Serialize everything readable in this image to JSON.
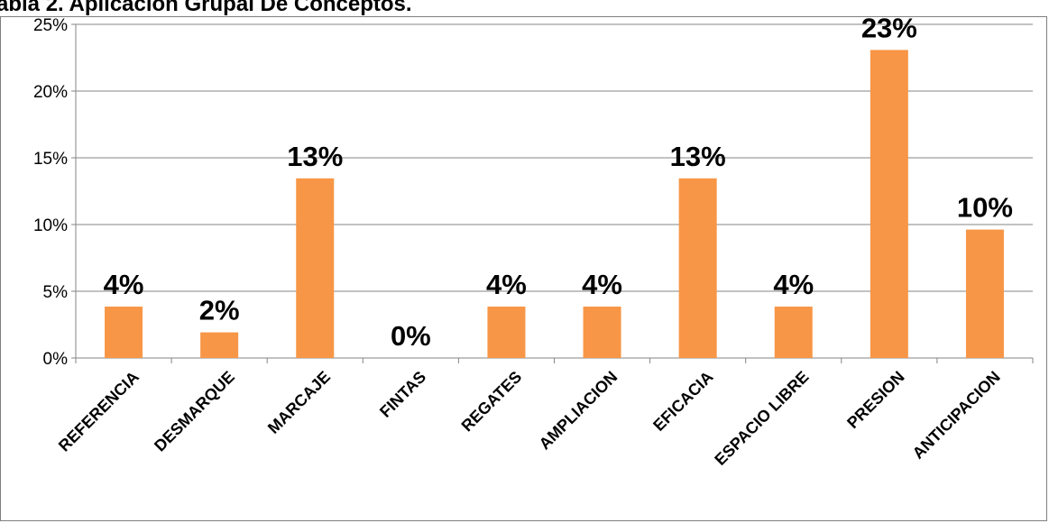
{
  "chart_data": {
    "type": "bar",
    "title": "abla 2. Aplicación Grupal De Conceptos.",
    "categories": [
      "REFERENCIA",
      "DESMARQUE",
      "MARCAJE",
      "FINTAS",
      "REGATES",
      "AMPLIACION",
      "EFICACIA",
      "ESPACIO LIBRE",
      "PRESION",
      "ANTICIPACION"
    ],
    "values": [
      3.85,
      1.92,
      13.46,
      0,
      3.85,
      3.85,
      13.46,
      3.85,
      23.08,
      9.62
    ],
    "data_labels": [
      "4%",
      "2%",
      "13%",
      "0%",
      "4%",
      "4%",
      "13%",
      "4%",
      "23%",
      "10%"
    ],
    "y_ticks": [
      "0%",
      "5%",
      "10%",
      "15%",
      "20%",
      "25%"
    ],
    "ylim": [
      0,
      25
    ],
    "grid": true,
    "legend": "none",
    "bar_color": "#F79646",
    "xlabel": "",
    "ylabel": ""
  }
}
